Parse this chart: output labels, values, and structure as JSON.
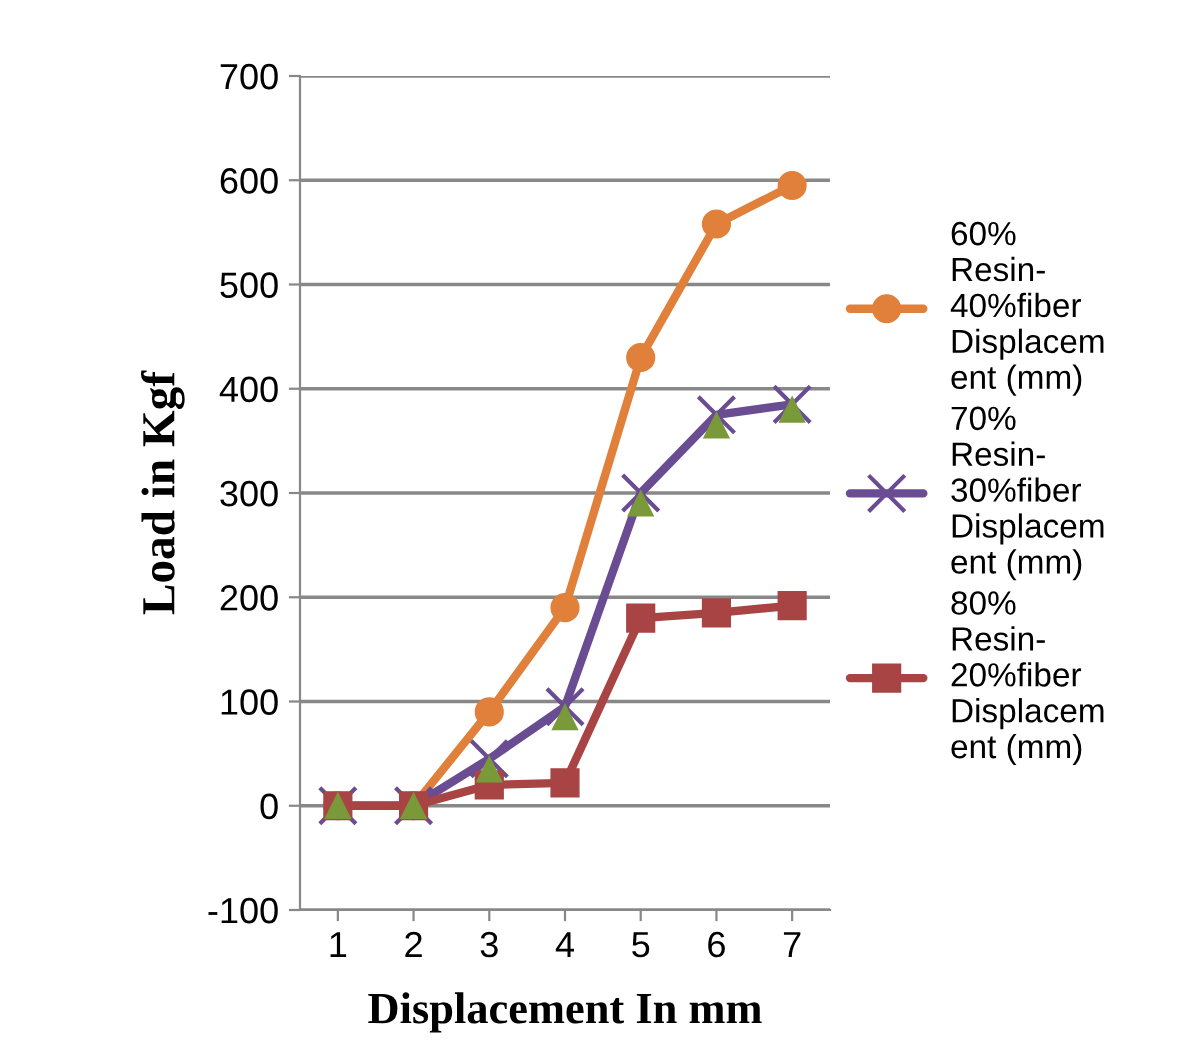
{
  "chart_data": {
    "type": "line",
    "xlabel": "Displacement In mm",
    "ylabel": "Load in Kgf",
    "categories": [
      "1",
      "2",
      "3",
      "4",
      "5",
      "6",
      "7"
    ],
    "series": [
      {
        "name": "60% Resin-40%fiber Displacement (mm)",
        "color": "#e0803a",
        "marker": "circle",
        "values": [
          0,
          0,
          90,
          190,
          430,
          558,
          595
        ]
      },
      {
        "name": "70% Resin-30%fiber Displacement (mm)",
        "color": "#6a4c93",
        "marker": "cross",
        "values": [
          0,
          0,
          45,
          95,
          300,
          375,
          385
        ]
      },
      {
        "name": "80% Resin-20%fiber Displacement (mm)",
        "color": "#a84444",
        "marker": "square",
        "values": [
          0,
          0,
          20,
          22,
          180,
          185,
          192
        ]
      },
      {
        "type": "scatter",
        "color": "#7a9a3a",
        "marker": "triangle",
        "values": [
          0,
          0,
          35,
          85,
          290,
          365,
          380
        ]
      }
    ],
    "ylim": [
      -100,
      700
    ],
    "yticks": [
      -100,
      0,
      100,
      200,
      300,
      400,
      500,
      600,
      700
    ],
    "grid": "y",
    "legend": "right"
  }
}
